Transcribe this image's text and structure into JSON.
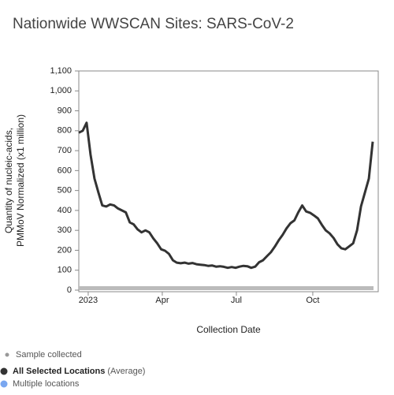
{
  "chart_data": {
    "type": "line",
    "title": "Nationwide WWSCAN Sites: SARS-CoV-2",
    "y_label": [
      "Quantity of nucleic-acids,",
      "PMMoV Normalized (x1 million)"
    ],
    "x_label": "Collection Date",
    "xlim": [
      0,
      76.4
    ],
    "xticks": [
      {
        "value": 2.4,
        "label": "2023"
      },
      {
        "value": 21.3,
        "label": "Apr"
      },
      {
        "value": 40.2,
        "label": "Jul"
      },
      {
        "value": 59.7,
        "label": "Oct"
      }
    ],
    "ylim": [
      0,
      1100
    ],
    "yticks": [
      0,
      100,
      200,
      300,
      400,
      500,
      600,
      700,
      800,
      900,
      {
        "value": 1000,
        "label": "1,000"
      },
      {
        "value": 1100,
        "label": "1,100"
      }
    ],
    "series": [
      {
        "name": "All Selected Locations",
        "color": "#333333",
        "values": [
          790,
          800,
          840,
          680,
          560,
          490,
          425,
          420,
          430,
          425,
          410,
          400,
          390,
          340,
          330,
          305,
          290,
          300,
          290,
          260,
          235,
          205,
          198,
          182,
          150,
          138,
          135,
          138,
          133,
          136,
          130,
          128,
          126,
          122,
          124,
          118,
          120,
          117,
          112,
          116,
          112,
          118,
          122,
          120,
          112,
          118,
          140,
          150,
          170,
          190,
          218,
          250,
          277,
          310,
          336,
          350,
          390,
          425,
          395,
          388,
          375,
          360,
          328,
          300,
          285,
          262,
          230,
          210,
          205,
          220,
          235,
          300,
          420,
          490,
          560,
          745
        ]
      }
    ],
    "legend": {
      "sample": "Sample collected",
      "sample_color": "#999999",
      "average": "(Average)",
      "multiple": "Multiple locations",
      "multiple_color": "#7aa7f0"
    }
  }
}
